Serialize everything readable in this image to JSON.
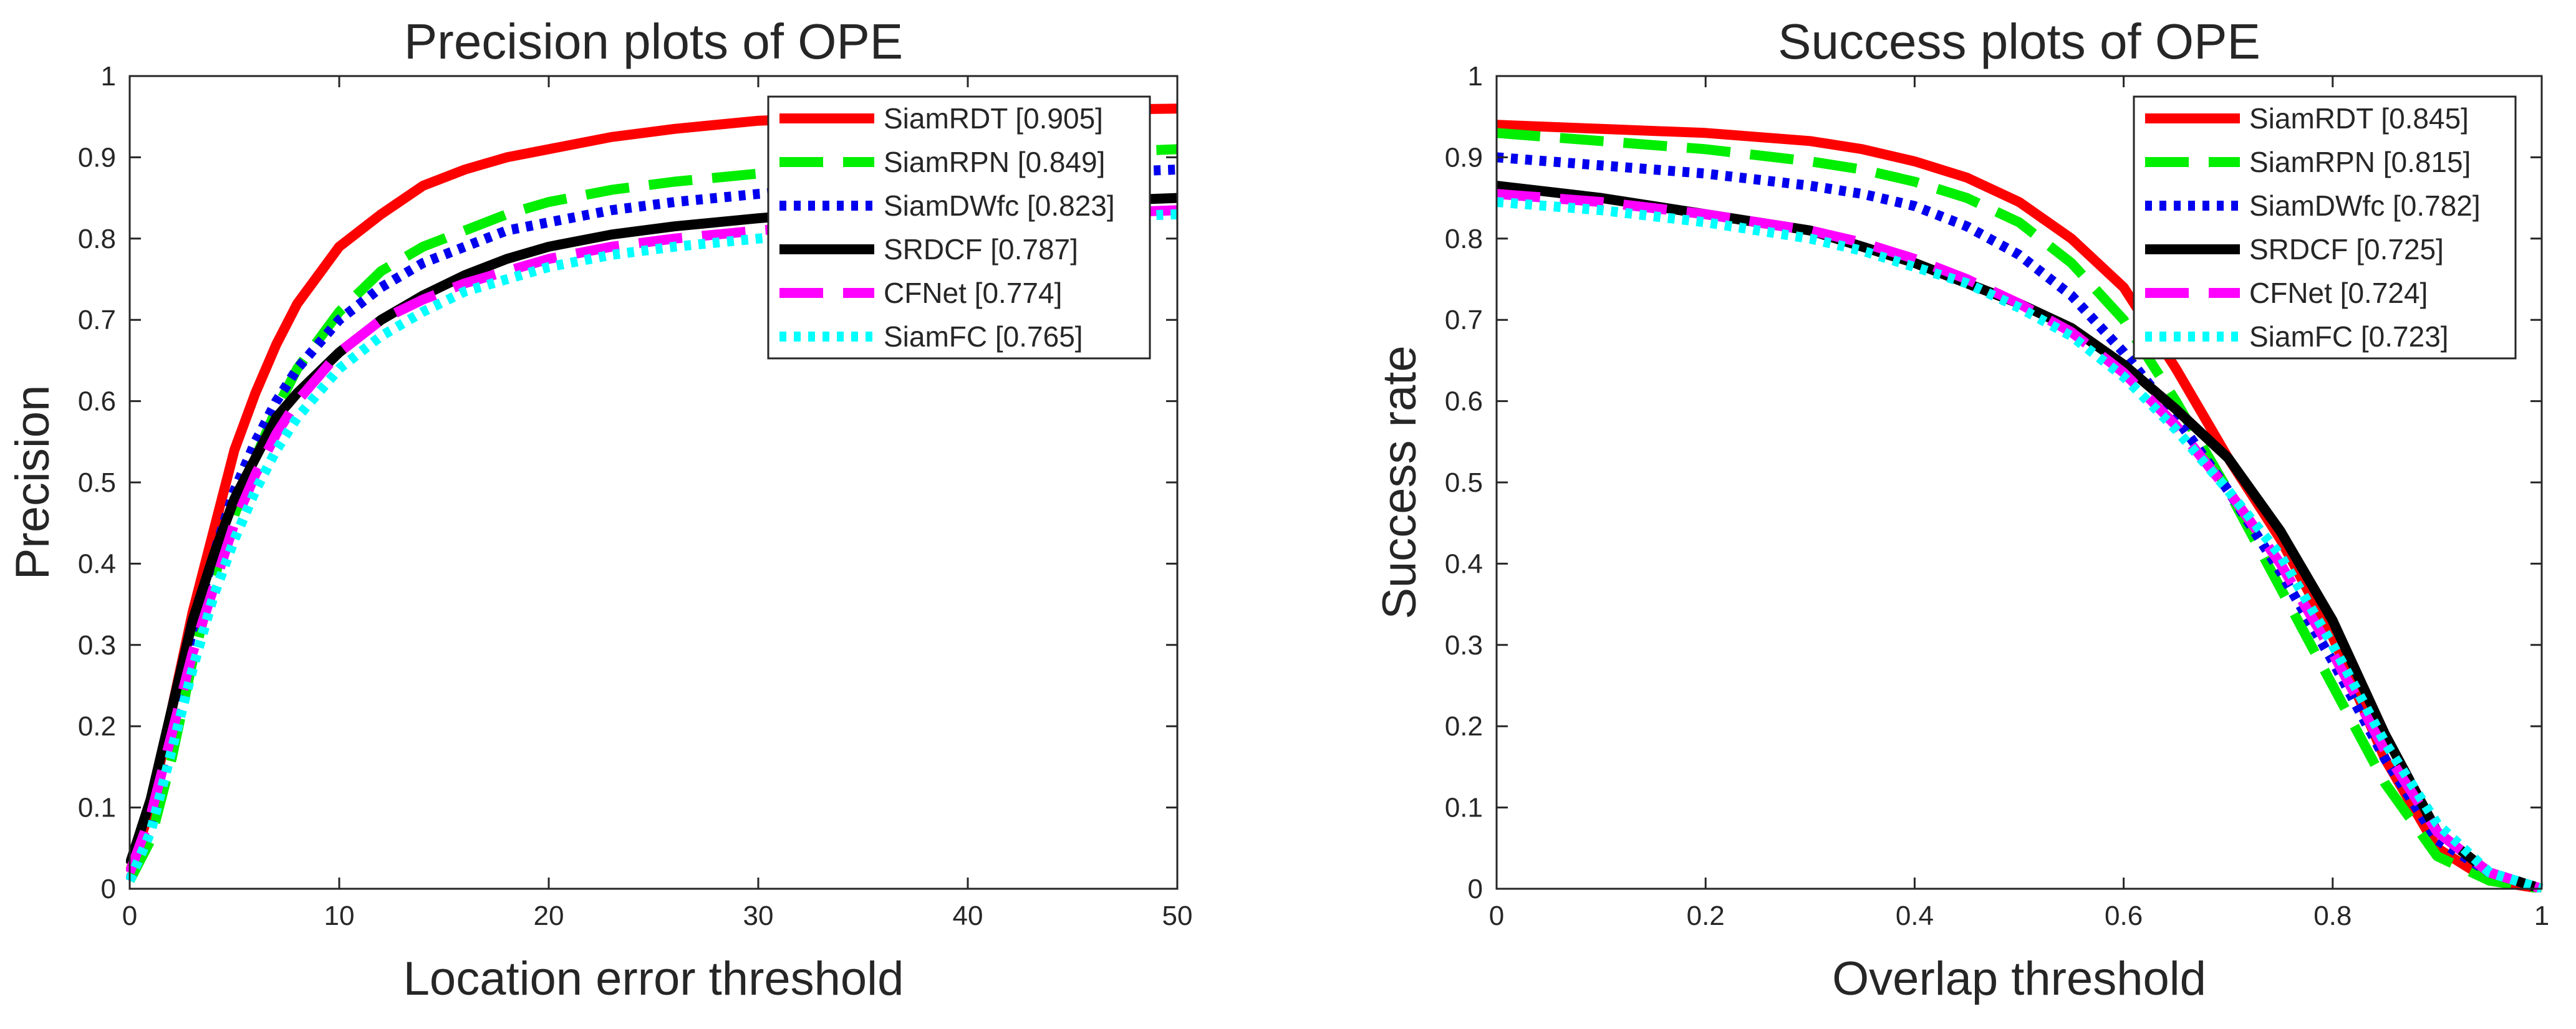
{
  "chart_data": [
    {
      "type": "line",
      "title": "Precision plots of OPE",
      "xlabel": "Location error threshold",
      "ylabel": "Precision",
      "xlim": [
        0,
        50
      ],
      "ylim": [
        0,
        1
      ],
      "xticks": [
        0,
        10,
        20,
        30,
        40,
        50
      ],
      "yticks": [
        0,
        0.1,
        0.2,
        0.3,
        0.4,
        0.5,
        0.6,
        0.7,
        0.8,
        0.9,
        1
      ],
      "xtick_labels": [
        "0",
        "10",
        "20",
        "30",
        "40",
        "50"
      ],
      "ytick_labels": [
        "0",
        "0.1",
        "0.2",
        "0.3",
        "0.4",
        "0.5",
        "0.6",
        "0.7",
        "0.8",
        "0.9",
        "1"
      ],
      "legend_position": "top-right",
      "series": [
        {
          "name": "SiamRDT",
          "label": "SiamRDT [0.905]",
          "color": "#ff0000",
          "style": "solid",
          "x": [
            0,
            1,
            2,
            3,
            4,
            5,
            6,
            7,
            8,
            10,
            12,
            14,
            16,
            18,
            20,
            23,
            26,
            30,
            35,
            40,
            45,
            50
          ],
          "y": [
            0.02,
            0.1,
            0.22,
            0.34,
            0.44,
            0.54,
            0.61,
            0.67,
            0.72,
            0.79,
            0.83,
            0.865,
            0.885,
            0.9,
            0.91,
            0.925,
            0.935,
            0.945,
            0.95,
            0.955,
            0.958,
            0.96
          ]
        },
        {
          "name": "SiamRPN",
          "label": "SiamRPN [0.849]",
          "color": "#00ee00",
          "style": "longdash",
          "x": [
            0,
            1,
            2,
            3,
            4,
            5,
            6,
            7,
            8,
            10,
            12,
            14,
            16,
            18,
            20,
            23,
            26,
            30,
            35,
            40,
            45,
            50
          ],
          "y": [
            0.01,
            0.06,
            0.16,
            0.28,
            0.38,
            0.46,
            0.53,
            0.59,
            0.64,
            0.71,
            0.76,
            0.79,
            0.81,
            0.83,
            0.845,
            0.86,
            0.87,
            0.88,
            0.89,
            0.9,
            0.905,
            0.91
          ]
        },
        {
          "name": "SiamDWfc",
          "label": "SiamDWfc [0.823]",
          "color": "#0000ee",
          "style": "dot",
          "x": [
            0,
            1,
            2,
            3,
            4,
            5,
            6,
            7,
            8,
            10,
            12,
            14,
            16,
            18,
            20,
            23,
            26,
            30,
            35,
            40,
            45,
            50
          ],
          "y": [
            0.01,
            0.08,
            0.2,
            0.32,
            0.41,
            0.49,
            0.55,
            0.6,
            0.64,
            0.7,
            0.74,
            0.77,
            0.79,
            0.81,
            0.82,
            0.835,
            0.845,
            0.855,
            0.865,
            0.875,
            0.88,
            0.885
          ]
        },
        {
          "name": "SRDCF",
          "label": "SRDCF [0.787]",
          "color": "#000000",
          "style": "solid",
          "x": [
            0,
            1,
            2,
            3,
            4,
            5,
            6,
            7,
            8,
            10,
            12,
            14,
            16,
            18,
            20,
            23,
            26,
            30,
            35,
            40,
            45,
            50
          ],
          "y": [
            0.03,
            0.11,
            0.22,
            0.33,
            0.41,
            0.48,
            0.53,
            0.58,
            0.61,
            0.66,
            0.7,
            0.73,
            0.755,
            0.775,
            0.79,
            0.805,
            0.815,
            0.825,
            0.835,
            0.84,
            0.845,
            0.85
          ]
        },
        {
          "name": "CFNet",
          "label": "CFNet [0.774]",
          "color": "#ff00ff",
          "style": "longdash",
          "x": [
            0,
            1,
            2,
            3,
            4,
            5,
            6,
            7,
            8,
            10,
            12,
            14,
            16,
            18,
            20,
            23,
            26,
            30,
            35,
            40,
            45,
            50
          ],
          "y": [
            0.02,
            0.09,
            0.19,
            0.29,
            0.37,
            0.45,
            0.51,
            0.56,
            0.6,
            0.66,
            0.7,
            0.725,
            0.745,
            0.76,
            0.775,
            0.79,
            0.8,
            0.81,
            0.82,
            0.825,
            0.83,
            0.835
          ]
        },
        {
          "name": "SiamFC",
          "label": "SiamFC [0.765]",
          "color": "#00ffff",
          "style": "dot",
          "x": [
            0,
            1,
            2,
            3,
            4,
            5,
            6,
            7,
            8,
            10,
            12,
            14,
            16,
            18,
            20,
            23,
            26,
            30,
            35,
            40,
            45,
            50
          ],
          "y": [
            0.01,
            0.07,
            0.17,
            0.27,
            0.36,
            0.43,
            0.49,
            0.54,
            0.58,
            0.64,
            0.68,
            0.71,
            0.735,
            0.75,
            0.765,
            0.78,
            0.79,
            0.8,
            0.81,
            0.82,
            0.825,
            0.83
          ]
        }
      ]
    },
    {
      "type": "line",
      "title": "Success plots of OPE",
      "xlabel": "Overlap threshold",
      "ylabel": "Success rate",
      "xlim": [
        0,
        1
      ],
      "ylim": [
        0,
        1
      ],
      "xticks": [
        0,
        0.2,
        0.4,
        0.6,
        0.8,
        1
      ],
      "yticks": [
        0,
        0.1,
        0.2,
        0.3,
        0.4,
        0.5,
        0.6,
        0.7,
        0.8,
        0.9,
        1
      ],
      "xtick_labels": [
        "0",
        "0.2",
        "0.4",
        "0.6",
        "0.8",
        "1"
      ],
      "ytick_labels": [
        "0",
        "0.1",
        "0.2",
        "0.3",
        "0.4",
        "0.5",
        "0.6",
        "0.7",
        "0.8",
        "0.9",
        "1"
      ],
      "legend_position": "top-right",
      "series": [
        {
          "name": "SiamRDT",
          "label": "SiamRDT [0.845]",
          "color": "#ff0000",
          "style": "solid",
          "x": [
            0,
            0.1,
            0.2,
            0.3,
            0.35,
            0.4,
            0.45,
            0.5,
            0.55,
            0.6,
            0.65,
            0.7,
            0.75,
            0.8,
            0.85,
            0.9,
            0.95,
            1.0
          ],
          "y": [
            0.94,
            0.935,
            0.93,
            0.92,
            0.91,
            0.895,
            0.875,
            0.845,
            0.8,
            0.74,
            0.64,
            0.53,
            0.43,
            0.31,
            0.16,
            0.05,
            0.01,
            0.0
          ]
        },
        {
          "name": "SiamRPN",
          "label": "SiamRPN [0.815]",
          "color": "#00ee00",
          "style": "longdash",
          "x": [
            0,
            0.1,
            0.2,
            0.3,
            0.35,
            0.4,
            0.45,
            0.5,
            0.55,
            0.6,
            0.65,
            0.7,
            0.75,
            0.8,
            0.85,
            0.9,
            0.95,
            1.0
          ],
          "y": [
            0.93,
            0.92,
            0.91,
            0.895,
            0.885,
            0.87,
            0.85,
            0.82,
            0.77,
            0.7,
            0.6,
            0.49,
            0.37,
            0.25,
            0.13,
            0.04,
            0.01,
            0.0
          ]
        },
        {
          "name": "SiamDWfc",
          "label": "SiamDWfc [0.782]",
          "color": "#0000ee",
          "style": "dot",
          "x": [
            0,
            0.1,
            0.2,
            0.3,
            0.35,
            0.4,
            0.45,
            0.5,
            0.55,
            0.6,
            0.65,
            0.7,
            0.75,
            0.8,
            0.85,
            0.9,
            0.95,
            1.0
          ],
          "y": [
            0.9,
            0.89,
            0.88,
            0.865,
            0.855,
            0.84,
            0.815,
            0.78,
            0.73,
            0.66,
            0.58,
            0.49,
            0.39,
            0.28,
            0.16,
            0.06,
            0.02,
            0.0
          ]
        },
        {
          "name": "SRDCF",
          "label": "SRDCF [0.725]",
          "color": "#000000",
          "style": "solid",
          "x": [
            0,
            0.1,
            0.2,
            0.3,
            0.35,
            0.4,
            0.45,
            0.5,
            0.55,
            0.6,
            0.65,
            0.7,
            0.75,
            0.8,
            0.85,
            0.9,
            0.95,
            1.0
          ],
          "y": [
            0.865,
            0.85,
            0.83,
            0.81,
            0.79,
            0.77,
            0.745,
            0.72,
            0.69,
            0.645,
            0.59,
            0.53,
            0.44,
            0.33,
            0.19,
            0.07,
            0.02,
            0.0
          ]
        },
        {
          "name": "CFNet",
          "label": "CFNet [0.724]",
          "color": "#ff00ff",
          "style": "longdash",
          "x": [
            0,
            0.1,
            0.2,
            0.3,
            0.35,
            0.4,
            0.45,
            0.5,
            0.55,
            0.6,
            0.65,
            0.7,
            0.75,
            0.8,
            0.85,
            0.9,
            0.95,
            1.0
          ],
          "y": [
            0.855,
            0.845,
            0.83,
            0.81,
            0.795,
            0.775,
            0.75,
            0.72,
            0.685,
            0.635,
            0.57,
            0.49,
            0.4,
            0.29,
            0.17,
            0.07,
            0.02,
            0.0
          ]
        },
        {
          "name": "SiamFC",
          "label": "SiamFC [0.723]",
          "color": "#00ffff",
          "style": "dot",
          "x": [
            0,
            0.1,
            0.2,
            0.3,
            0.35,
            0.4,
            0.45,
            0.5,
            0.55,
            0.6,
            0.65,
            0.7,
            0.75,
            0.8,
            0.85,
            0.9,
            0.95,
            1.0
          ],
          "y": [
            0.845,
            0.835,
            0.82,
            0.8,
            0.785,
            0.765,
            0.745,
            0.715,
            0.68,
            0.63,
            0.565,
            0.49,
            0.41,
            0.3,
            0.18,
            0.08,
            0.02,
            0.0
          ]
        }
      ]
    }
  ]
}
